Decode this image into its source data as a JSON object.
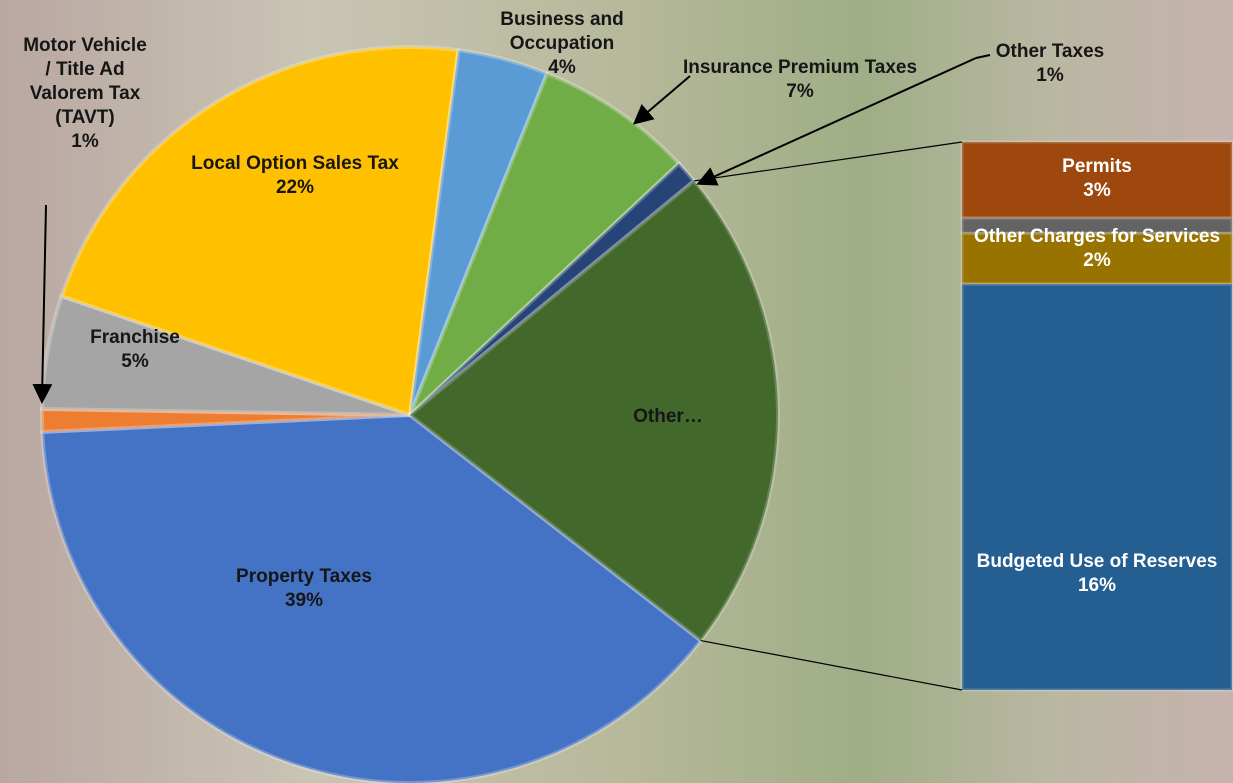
{
  "chart_data": {
    "type": "pie",
    "categories": [
      "Property Taxes",
      "Motor Vehicle / Title Ad Valorem Tax (TAVT)",
      "Franchise",
      "Local Option Sales Tax",
      "Business and Occupation",
      "Insurance Premium Taxes",
      "Other Taxes"
    ],
    "values": [
      39,
      1,
      5,
      22,
      4,
      7,
      1
    ],
    "value_labels": [
      "39%",
      "1%",
      "5%",
      "22%",
      "4%",
      "7%",
      "1%"
    ],
    "colors": [
      "#4472c4",
      "#ed7d31",
      "#a5a5a5",
      "#ffc000",
      "#5b9bd5",
      "#70ad47",
      "#264478"
    ],
    "other_label": "Other…",
    "other_color": "#43682b",
    "breakdown": {
      "categories": [
        "Permits",
        null,
        "Other Charges for Services",
        "Budgeted Use of Reserves"
      ],
      "values": [
        3,
        0.6,
        2,
        16
      ],
      "value_labels": [
        "3%",
        null,
        "2%",
        "16%"
      ],
      "colors": [
        "#9e480e",
        "#636363",
        "#997300",
        "#255e91"
      ]
    }
  }
}
